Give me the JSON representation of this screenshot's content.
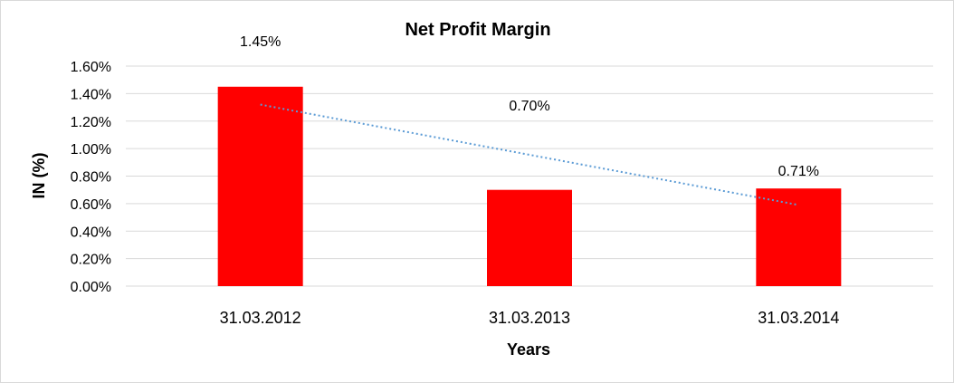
{
  "chart_data": {
    "type": "bar",
    "title": "Net Profit Margin",
    "xlabel": "Years",
    "ylabel": "IN (%)",
    "categories": [
      "31.03.2012",
      "31.03.2013",
      "31.03.2014"
    ],
    "values": [
      1.45,
      0.7,
      0.71
    ],
    "data_labels": [
      "1.45%",
      "0.70%",
      "0.71%"
    ],
    "ylim": [
      0,
      1.6
    ],
    "yticks": [
      0,
      0.2,
      0.4,
      0.6,
      0.8,
      1.0,
      1.2,
      1.4,
      1.6
    ],
    "ytick_labels": [
      "0.00%",
      "0.20%",
      "0.40%",
      "0.60%",
      "0.80%",
      "1.00%",
      "1.20%",
      "1.40%",
      "1.60%"
    ],
    "grid": true,
    "legend": "none",
    "bar_color": "#ff0000",
    "trendline": {
      "type": "linear",
      "color": "#5b9bd5",
      "style": "dotted",
      "start": 1.32,
      "end": 0.59
    }
  }
}
